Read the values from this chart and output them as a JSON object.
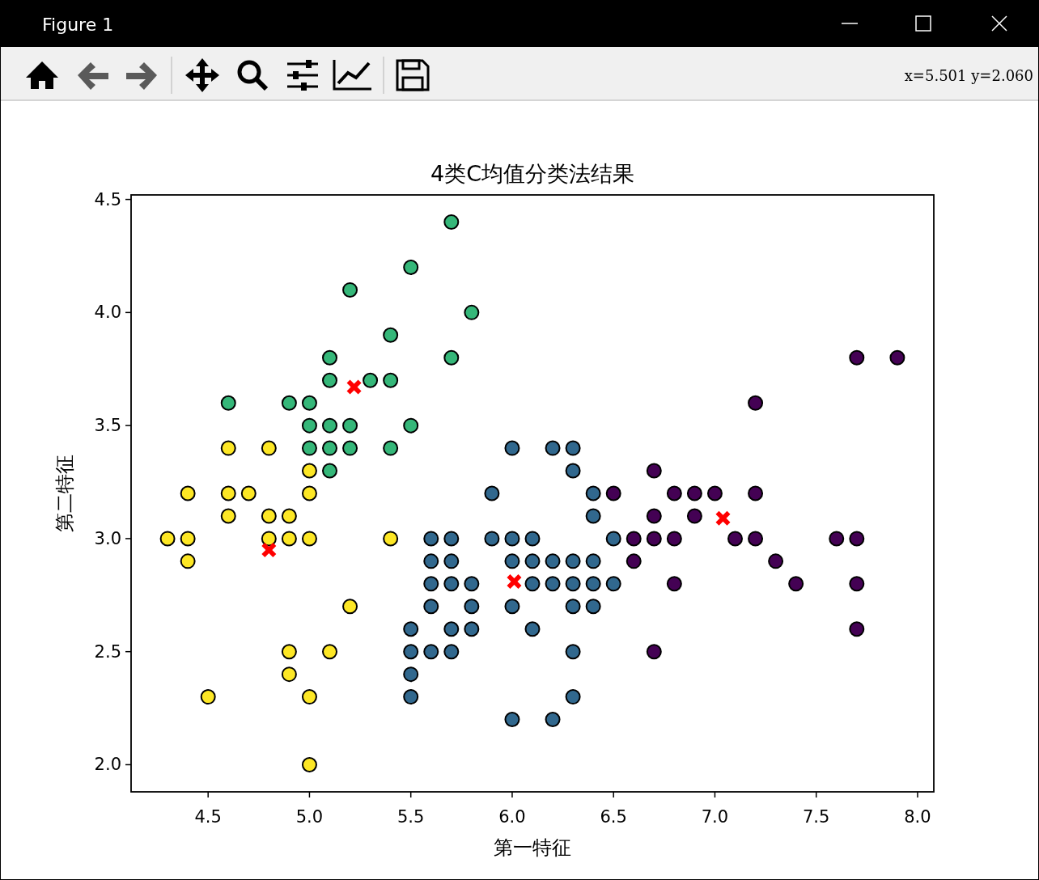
{
  "chart_data": {
    "type": "scatter",
    "title": "4类C均值分类法结果",
    "xlabel": "第一特征",
    "ylabel": "第二特征",
    "xlim": [
      4.12,
      8.08
    ],
    "ylim": [
      1.88,
      4.52
    ],
    "xticks": [
      {
        "value": 4.5,
        "label": "4.5"
      },
      {
        "value": 5,
        "label": "5.0"
      },
      {
        "value": 5.5,
        "label": "5.5"
      },
      {
        "value": 6,
        "label": "6.0"
      },
      {
        "value": 6.5,
        "label": "6.5"
      },
      {
        "value": 7,
        "label": "7.0"
      },
      {
        "value": 7.5,
        "label": "7.5"
      },
      {
        "value": 8,
        "label": "8.0"
      }
    ],
    "yticks": [
      {
        "value": 2,
        "label": "2.0"
      },
      {
        "value": 2.5,
        "label": "2.5"
      },
      {
        "value": 3,
        "label": "3.0"
      },
      {
        "value": 3.5,
        "label": "3.5"
      },
      {
        "value": 4,
        "label": "4.0"
      },
      {
        "value": 4.5,
        "label": "4.5"
      }
    ],
    "marker": "circle",
    "annotations": [
      "Figure 1",
      "x=5.501 y=2.060"
    ],
    "series": [
      {
        "color": "#fde725",
        "x": [
          4.3,
          4.4,
          4.4,
          4.4,
          4.5,
          4.6,
          4.6,
          4.6,
          4.7,
          4.8,
          4.8,
          4.8,
          4.9,
          4.9,
          4.9,
          4.9,
          5.0,
          5.0,
          5.0,
          5.0,
          5.0,
          5.1,
          5.2,
          5.4
        ],
        "values": [
          3.0,
          3.2,
          3.0,
          2.9,
          2.3,
          3.4,
          3.2,
          3.1,
          3.2,
          3.4,
          3.1,
          3.0,
          3.1,
          3.0,
          2.5,
          2.4,
          3.3,
          3.2,
          3.0,
          2.3,
          2.0,
          2.5,
          2.7,
          3.0
        ]
      },
      {
        "color": "#35b779",
        "x": [
          4.6,
          4.9,
          5.0,
          5.0,
          5.0,
          5.1,
          5.1,
          5.1,
          5.1,
          5.1,
          5.2,
          5.2,
          5.2,
          5.3,
          5.4,
          5.4,
          5.4,
          5.5,
          5.5,
          5.7,
          5.7,
          5.8
        ],
        "values": [
          3.6,
          3.6,
          3.6,
          3.5,
          3.4,
          3.8,
          3.7,
          3.5,
          3.4,
          3.3,
          4.1,
          3.5,
          3.4,
          3.7,
          3.9,
          3.7,
          3.4,
          4.2,
          3.5,
          4.4,
          3.8,
          4.0
        ]
      },
      {
        "color": "#31688e",
        "x": [
          5.5,
          5.5,
          5.5,
          5.5,
          5.6,
          5.6,
          5.6,
          5.6,
          5.6,
          5.7,
          5.7,
          5.7,
          5.7,
          5.7,
          5.8,
          5.8,
          5.8,
          5.9,
          5.9,
          6.0,
          6.0,
          6.0,
          6.0,
          6.0,
          6.1,
          6.1,
          6.1,
          6.1,
          6.2,
          6.2,
          6.2,
          6.2,
          6.3,
          6.3,
          6.3,
          6.3,
          6.3,
          6.3,
          6.3,
          6.4,
          6.4,
          6.4,
          6.4,
          6.4,
          6.5,
          6.5
        ],
        "values": [
          2.6,
          2.5,
          2.4,
          2.3,
          3.0,
          2.9,
          2.8,
          2.7,
          2.5,
          3.0,
          2.9,
          2.8,
          2.6,
          2.5,
          2.8,
          2.7,
          2.6,
          3.2,
          3.0,
          3.4,
          3.0,
          2.9,
          2.7,
          2.2,
          3.0,
          2.9,
          2.8,
          2.6,
          3.4,
          2.9,
          2.8,
          2.2,
          3.4,
          3.3,
          2.9,
          2.8,
          2.7,
          2.5,
          2.3,
          3.2,
          3.1,
          2.9,
          2.8,
          2.7,
          3.0,
          2.8
        ]
      },
      {
        "color": "#440154",
        "x": [
          6.5,
          6.6,
          6.6,
          6.7,
          6.7,
          6.7,
          6.7,
          6.8,
          6.8,
          6.8,
          6.9,
          6.9,
          7.0,
          7.1,
          7.2,
          7.2,
          7.2,
          7.3,
          7.4,
          7.6,
          7.7,
          7.7,
          7.7,
          7.7,
          7.9
        ],
        "values": [
          3.2,
          3.0,
          2.9,
          3.3,
          3.1,
          3.0,
          2.5,
          3.2,
          3.0,
          2.8,
          3.2,
          3.1,
          3.2,
          3.0,
          3.6,
          3.2,
          3.0,
          2.9,
          2.8,
          3.0,
          3.8,
          3.0,
          2.8,
          2.6,
          3.8
        ]
      },
      {
        "color": "#ff0000",
        "marker": "cross",
        "x": [
          5.22,
          4.8,
          6.01,
          7.04
        ],
        "values": [
          3.67,
          2.95,
          2.81,
          3.09
        ]
      }
    ]
  }
}
